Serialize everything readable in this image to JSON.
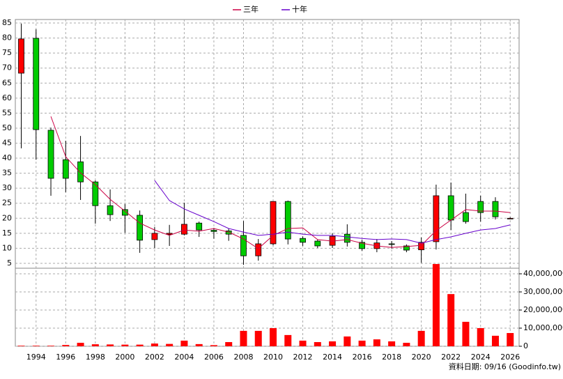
{
  "chart_data": {
    "type": "candlestick",
    "x": [
      1993,
      1994,
      1995,
      1996,
      1997,
      1998,
      1999,
      2000,
      2001,
      2002,
      2003,
      2004,
      2005,
      2006,
      2007,
      2008,
      2009,
      2010,
      2011,
      2012,
      2013,
      2014,
      2015,
      2016,
      2017,
      2018,
      2019,
      2020,
      2021,
      2022,
      2023,
      2024,
      2025,
      2026
    ],
    "open": [
      68.3,
      79.9,
      49.3,
      39.5,
      38.8,
      32.1,
      24.2,
      22.9,
      21.0,
      12.9,
      14.6,
      14.7,
      18.4,
      16.0,
      15.8,
      14.3,
      7.5,
      11.5,
      25.6,
      13.3,
      12.4,
      11.0,
      14.7,
      12.0,
      9.9,
      11.5,
      10.8,
      9.5,
      12.2,
      27.5,
      21.9,
      25.6,
      25.6,
      20.0
    ],
    "high": [
      84.8,
      82.9,
      50.2,
      45.8,
      47.4,
      32.6,
      29.6,
      24.7,
      22.6,
      17.1,
      17.8,
      25.2,
      18.9,
      16.8,
      16.5,
      19.1,
      13.1,
      25.6,
      25.9,
      14.0,
      12.9,
      15.0,
      18.0,
      12.9,
      13.1,
      12.4,
      11.3,
      13.6,
      31.2,
      31.9,
      28.2,
      27.5,
      27.0,
      20.3
    ],
    "low": [
      43.3,
      39.5,
      27.5,
      28.7,
      26.1,
      18.2,
      19.1,
      15.2,
      8.5,
      10.1,
      10.8,
      14.3,
      13.8,
      13.2,
      12.5,
      4.5,
      5.9,
      11.0,
      11.3,
      10.8,
      10.1,
      10.1,
      10.6,
      9.2,
      8.7,
      9.9,
      8.7,
      5.2,
      9.6,
      16.1,
      18.2,
      18.9,
      19.6,
      19.8
    ],
    "close": [
      79.7,
      49.5,
      33.3,
      33.3,
      32.1,
      24.2,
      21.2,
      21.0,
      12.7,
      15.0,
      15.0,
      18.0,
      16.1,
      15.6,
      14.7,
      7.5,
      11.5,
      25.6,
      13.1,
      12.0,
      10.8,
      14.0,
      12.0,
      9.9,
      11.8,
      11.3,
      9.4,
      12.0,
      27.5,
      19.4,
      18.9,
      21.9,
      20.5,
      20.0
    ],
    "up_color": "#ff0000",
    "down_color": "#00cc00",
    "ma": [
      {
        "name": "三年",
        "color": "#cc0044",
        "values": [
          null,
          null,
          53.9,
          40.5,
          35.1,
          31.2,
          26.3,
          22.4,
          18.4,
          16.1,
          14.3,
          16.1,
          15.7,
          16.6,
          15.4,
          13.1,
          9.9,
          14.3,
          16.6,
          16.8,
          12.9,
          12.4,
          12.9,
          11.7,
          10.8,
          10.3,
          10.6,
          11.0,
          15.9,
          19.4,
          22.9,
          22.4,
          22.4,
          21.9
        ]
      },
      {
        "name": "十年",
        "color": "#6600cc",
        "values": [
          null,
          null,
          null,
          null,
          null,
          null,
          null,
          null,
          null,
          32.6,
          25.9,
          23.1,
          21.0,
          18.9,
          16.6,
          15.4,
          14.3,
          14.7,
          15.4,
          14.7,
          14.3,
          14.3,
          13.8,
          13.3,
          12.9,
          13.1,
          12.9,
          11.7,
          12.9,
          13.8,
          15.0,
          16.1,
          16.6,
          17.8
        ]
      }
    ],
    "volume": {
      "color": "#ff0000",
      "values": [
        300000,
        300000,
        300000,
        700000,
        1900000,
        1100000,
        1000000,
        900000,
        900000,
        1500000,
        1300000,
        3100000,
        1200000,
        600000,
        2300000,
        8500000,
        8500000,
        10000000,
        6200000,
        3100000,
        2300000,
        2700000,
        5400000,
        3100000,
        3800000,
        2700000,
        1900000,
        8500000,
        45400000,
        28800000,
        13500000,
        10000000,
        5800000,
        7300000
      ],
      "ylim": [
        0,
        42000000
      ],
      "yticks": [
        0,
        {
          "value": 10000000,
          "label": "10,000,000"
        },
        {
          "value": 20000000,
          "label": "20,000,000"
        },
        {
          "value": 30000000,
          "label": "30,000,000"
        },
        {
          "value": 40000000,
          "label": "40,000,000"
        }
      ]
    },
    "xlim": [
      1992.6,
      2026.6
    ],
    "xticks": [
      1994,
      1996,
      1998,
      2000,
      2002,
      2004,
      2006,
      2008,
      2010,
      2012,
      2014,
      2016,
      2018,
      2020,
      2022,
      2024,
      2026
    ],
    "ylim": [
      4,
      86
    ],
    "yticks": [
      5,
      10,
      15,
      20,
      25,
      30,
      35,
      40,
      45,
      50,
      55,
      60,
      65,
      70,
      75,
      80,
      85
    ],
    "grid": true,
    "legend": "top",
    "note": "資料日期: 09/16 (Goodinfo.tw)"
  }
}
